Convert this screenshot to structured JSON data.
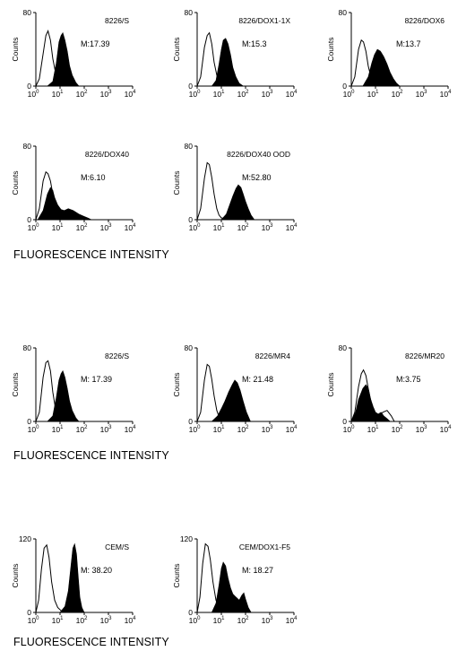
{
  "section_labels": [
    "FLUORESCENCE INTENSITY",
    "FLUORESCENCE INTENSITY",
    "FLUORESCENCE INTENSITY"
  ],
  "chart_data": [
    {
      "type": "area",
      "name": "8226/S",
      "title": "8226/S",
      "annotation": "M:17.39",
      "ylabel": "Counts",
      "ylim": [
        0,
        80
      ],
      "yticks": [
        "0",
        "80"
      ],
      "xscale": "log",
      "xlim": [
        1,
        10000
      ],
      "xticks": [
        "10^0",
        "10^1",
        "10^2",
        "10^3",
        "10^4"
      ],
      "series": [
        {
          "name": "",
          "style": "open",
          "x": [
            1,
            1.4,
            2,
            2.6,
            3.2,
            4,
            5,
            6.5,
            8,
            10,
            14,
            20
          ],
          "y": [
            0,
            8,
            35,
            55,
            60,
            50,
            30,
            15,
            6,
            2,
            1,
            0
          ]
        },
        {
          "name": "",
          "style": "filled",
          "x": [
            3,
            5,
            7,
            9,
            11,
            13,
            16,
            20,
            25,
            32,
            45,
            60
          ],
          "y": [
            0,
            5,
            25,
            48,
            55,
            58,
            50,
            38,
            22,
            12,
            4,
            0
          ]
        }
      ]
    },
    {
      "type": "area",
      "name": "8226/DOX1-1X",
      "title": "8226/DOX1-1X",
      "annotation": "M:15.3",
      "ylabel": "Counts",
      "ylim": [
        0,
        80
      ],
      "yticks": [
        "0",
        "80"
      ],
      "xscale": "log",
      "xlim": [
        1,
        10000
      ],
      "xticks": [
        "10^0",
        "10^1",
        "10^2",
        "10^3",
        "10^4"
      ],
      "series": [
        {
          "name": "",
          "style": "open",
          "x": [
            1,
            1.4,
            2,
            2.6,
            3.2,
            4,
            5,
            6.5,
            8,
            10,
            14,
            20
          ],
          "y": [
            0,
            10,
            42,
            55,
            58,
            46,
            26,
            12,
            5,
            2,
            1,
            0
          ]
        },
        {
          "name": "",
          "style": "filled",
          "x": [
            4,
            6,
            8,
            10,
            12,
            15,
            19,
            24,
            30,
            40,
            55,
            80
          ],
          "y": [
            0,
            6,
            24,
            40,
            50,
            52,
            46,
            34,
            20,
            10,
            3,
            0
          ]
        }
      ]
    },
    {
      "type": "area",
      "name": "8226/DOX6",
      "title": "8226/DOX6",
      "annotation": "M:13.7",
      "ylabel": "Counts",
      "ylim": [
        0,
        80
      ],
      "yticks": [
        "0",
        "80"
      ],
      "xscale": "log",
      "xlim": [
        1,
        10000
      ],
      "xticks": [
        "10^0",
        "10^1",
        "10^2",
        "10^3",
        "10^4"
      ],
      "series": [
        {
          "name": "",
          "style": "open",
          "x": [
            1,
            1.4,
            2,
            2.6,
            3.2,
            4,
            5,
            6.5,
            8,
            10,
            14,
            20
          ],
          "y": [
            0,
            10,
            40,
            50,
            48,
            38,
            22,
            10,
            5,
            2,
            1,
            0
          ]
        },
        {
          "name": "",
          "style": "filled",
          "x": [
            3,
            5,
            7,
            9,
            12,
            16,
            22,
            30,
            40,
            55,
            75,
            100
          ],
          "y": [
            0,
            10,
            25,
            34,
            40,
            38,
            32,
            24,
            15,
            8,
            3,
            0
          ]
        }
      ]
    },
    {
      "type": "area",
      "name": "8226/DOX40",
      "title": "8226/DOX40",
      "annotation": "M:6.10",
      "ylabel": "Counts",
      "ylim": [
        0,
        80
      ],
      "yticks": [
        "0",
        "80"
      ],
      "xscale": "log",
      "xlim": [
        1,
        10000
      ],
      "xticks": [
        "10^0",
        "10^1",
        "10^2",
        "10^3",
        "10^4"
      ],
      "series": [
        {
          "name": "",
          "style": "open",
          "x": [
            1,
            1.4,
            2,
            2.6,
            3.2,
            4,
            5,
            6.5,
            8,
            10,
            14,
            20
          ],
          "y": [
            0,
            12,
            42,
            52,
            50,
            42,
            28,
            14,
            7,
            3,
            1,
            0
          ]
        },
        {
          "name": "",
          "style": "filled",
          "x": [
            1.2,
            2,
            3,
            4,
            5,
            6,
            8,
            11,
            15,
            22,
            35,
            60,
            90,
            140,
            200
          ],
          "y": [
            0,
            10,
            28,
            35,
            32,
            24,
            16,
            11,
            10,
            12,
            10,
            6,
            4,
            2,
            0
          ]
        }
      ]
    },
    {
      "type": "area",
      "name": "8226/DOX40 OOD",
      "title": "8226/DOX40 OOD",
      "annotation": "M:52.80",
      "ylabel": "Counts",
      "ylim": [
        0,
        80
      ],
      "yticks": [
        "0",
        "80"
      ],
      "xscale": "log",
      "xlim": [
        1,
        10000
      ],
      "xticks": [
        "10^0",
        "10^1",
        "10^2",
        "10^3",
        "10^4"
      ],
      "series": [
        {
          "name": "",
          "style": "open",
          "x": [
            1,
            1.4,
            2,
            2.6,
            3.2,
            4,
            5,
            6.5,
            8,
            10,
            14,
            20
          ],
          "y": [
            0,
            12,
            45,
            62,
            60,
            46,
            28,
            12,
            5,
            2,
            1,
            0
          ]
        },
        {
          "name": "",
          "style": "filled",
          "x": [
            10,
            16,
            22,
            30,
            40,
            50,
            65,
            80,
            100,
            130,
            170,
            230
          ],
          "y": [
            0,
            6,
            16,
            26,
            34,
            38,
            35,
            28,
            20,
            12,
            5,
            0
          ]
        }
      ]
    },
    {
      "type": "area",
      "name": "8226/S",
      "title": "8226/S",
      "annotation": "M:  17.39",
      "ylabel": "Counts",
      "ylim": [
        0,
        80
      ],
      "yticks": [
        "0",
        "80"
      ],
      "xscale": "log",
      "xlim": [
        1,
        10000
      ],
      "xticks": [
        "10^0",
        "10^1",
        "10^2",
        "10^3",
        "10^4"
      ],
      "series": [
        {
          "name": "",
          "style": "open",
          "x": [
            1,
            1.4,
            2,
            2.6,
            3.2,
            4,
            5,
            6.5,
            8,
            10,
            14,
            20
          ],
          "y": [
            0,
            10,
            48,
            64,
            66,
            55,
            32,
            14,
            6,
            2,
            1,
            0
          ]
        },
        {
          "name": "",
          "style": "filled",
          "x": [
            3,
            5,
            7,
            9,
            11,
            13,
            16,
            20,
            25,
            32,
            45,
            60
          ],
          "y": [
            0,
            6,
            26,
            45,
            52,
            55,
            48,
            36,
            22,
            12,
            4,
            0
          ]
        }
      ]
    },
    {
      "type": "area",
      "name": "8226/MR4",
      "title": "8226/MR4",
      "annotation": "M:  21.48",
      "ylabel": "Counts",
      "ylim": [
        0,
        80
      ],
      "yticks": [
        "0",
        "80"
      ],
      "xscale": "log",
      "xlim": [
        1,
        10000
      ],
      "xticks": [
        "10^0",
        "10^1",
        "10^2",
        "10^3",
        "10^4"
      ],
      "series": [
        {
          "name": "",
          "style": "open",
          "x": [
            1,
            1.4,
            2,
            2.6,
            3.2,
            4,
            5,
            6.5,
            8,
            10,
            14,
            20
          ],
          "y": [
            0,
            10,
            45,
            62,
            60,
            46,
            28,
            12,
            5,
            2,
            1,
            0
          ]
        },
        {
          "name": "",
          "style": "filled",
          "x": [
            4,
            7,
            10,
            14,
            20,
            28,
            36,
            46,
            60,
            80,
            110,
            160
          ],
          "y": [
            0,
            6,
            14,
            22,
            32,
            40,
            45,
            42,
            34,
            22,
            10,
            0
          ]
        }
      ]
    },
    {
      "type": "area",
      "name": "8226/MR20",
      "title": "8226/MR20",
      "annotation": "M:3.75",
      "ylabel": "Counts",
      "ylim": [
        0,
        80
      ],
      "yticks": [
        "0",
        "80"
      ],
      "xscale": "log",
      "xlim": [
        1,
        10000
      ],
      "xticks": [
        "10^0",
        "10^1",
        "10^2",
        "10^3",
        "10^4"
      ],
      "series": [
        {
          "name": "",
          "style": "open",
          "x": [
            1,
            1.4,
            2,
            2.6,
            3.2,
            4,
            5,
            6.5,
            8,
            10,
            14,
            20,
            30,
            45,
            60
          ],
          "y": [
            0,
            10,
            38,
            52,
            56,
            50,
            36,
            22,
            12,
            8,
            6,
            10,
            12,
            6,
            0
          ]
        },
        {
          "name": "",
          "style": "filled",
          "x": [
            1,
            1.5,
            2,
            3,
            4,
            5,
            6,
            8,
            10,
            13,
            17,
            22,
            30,
            40
          ],
          "y": [
            0,
            10,
            24,
            36,
            40,
            36,
            26,
            16,
            10,
            8,
            10,
            6,
            3,
            0
          ]
        }
      ]
    },
    {
      "type": "area",
      "name": "CEM/S",
      "title": "CEM/S",
      "annotation": "M:  38.20",
      "ylabel": "Counts",
      "ylim": [
        0,
        120
      ],
      "yticks": [
        "0",
        "120"
      ],
      "xscale": "log",
      "xlim": [
        1,
        10000
      ],
      "xticks": [
        "10^0",
        "10^1",
        "10^2",
        "10^3",
        "10^4"
      ],
      "series": [
        {
          "name": "",
          "style": "open",
          "x": [
            1,
            1.3,
            1.7,
            2.2,
            2.8,
            3.5,
            4.5,
            6,
            8,
            11,
            15
          ],
          "y": [
            0,
            20,
            70,
            105,
            110,
            90,
            50,
            20,
            8,
            3,
            0
          ]
        },
        {
          "name": "",
          "style": "filled",
          "x": [
            10,
            16,
            22,
            28,
            34,
            40,
            48,
            56,
            66,
            80,
            100
          ],
          "y": [
            0,
            10,
            35,
            75,
            105,
            112,
            95,
            60,
            25,
            8,
            0
          ]
        }
      ]
    },
    {
      "type": "area",
      "name": "CEM/DOX1-F5",
      "title": "CEM/DOX1-F5",
      "annotation": "M:  18.27",
      "ylabel": "Counts",
      "ylim": [
        0,
        120
      ],
      "yticks": [
        "0",
        "120"
      ],
      "xscale": "log",
      "xlim": [
        1,
        10000
      ],
      "xticks": [
        "10^0",
        "10^1",
        "10^2",
        "10^3",
        "10^4"
      ],
      "series": [
        {
          "name": "",
          "style": "open",
          "x": [
            1,
            1.3,
            1.7,
            2.2,
            2.8,
            3.5,
            4.5,
            6,
            8,
            11,
            15
          ],
          "y": [
            0,
            25,
            80,
            112,
            108,
            86,
            50,
            20,
            8,
            3,
            0
          ]
        },
        {
          "name": "",
          "style": "filled",
          "x": [
            4,
            6,
            8,
            10,
            12,
            15,
            19,
            24,
            30,
            40,
            55,
            70,
            85,
            100,
            130,
            170
          ],
          "y": [
            0,
            15,
            45,
            72,
            82,
            76,
            56,
            40,
            30,
            25,
            20,
            28,
            32,
            22,
            8,
            0
          ]
        }
      ]
    }
  ]
}
